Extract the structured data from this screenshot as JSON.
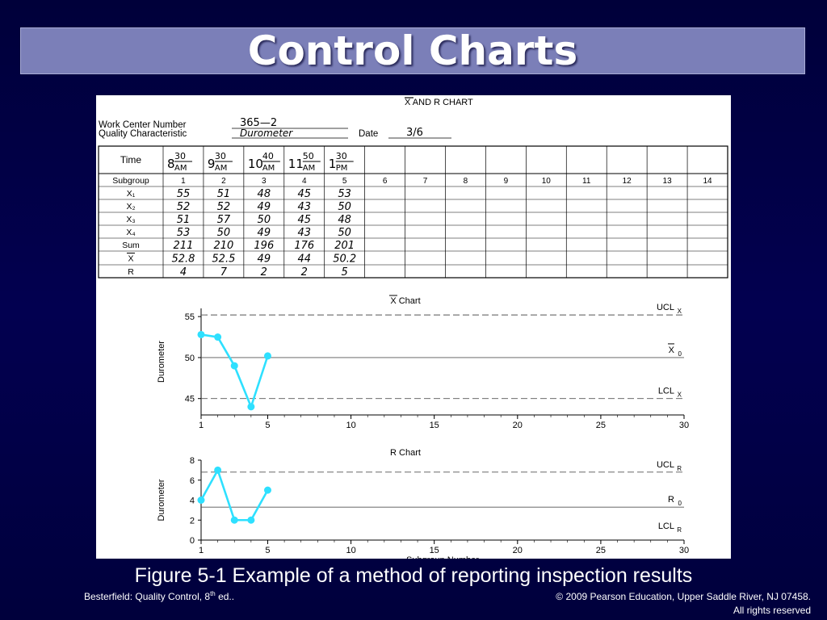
{
  "slide": {
    "title": "Control Charts",
    "caption": "Figure 5-1 Example of a method of reporting inspection results",
    "credit_left_pre": "Besterfield: Quality Control, 8",
    "credit_left_sup": "th",
    "credit_left_post": " ed..",
    "credit_right_line1": "© 2009 Pearson Education, Upper Saddle River, NJ 07458.",
    "credit_right_line2": "All rights reserved"
  },
  "form": {
    "heading": "X AND R CHART",
    "work_center_label": "Work Center Number",
    "work_center_value": "365—2",
    "quality_label": "Quality Characteristic",
    "quality_value": "Durometer",
    "date_label": "Date",
    "date_value": "3/6",
    "row_labels": {
      "time": "Time",
      "subgroup": "Subgroup",
      "x1": "X₁",
      "x2": "X₂",
      "x3": "X₃",
      "x4": "X₄",
      "sum": "Sum",
      "xbar": "X",
      "r": "R"
    },
    "times": [
      {
        "hour": "8",
        "min": "30",
        "ampm": "AM"
      },
      {
        "hour": "9",
        "min": "30",
        "ampm": "AM"
      },
      {
        "hour": "10",
        "min": "40",
        "ampm": "AM"
      },
      {
        "hour": "11",
        "min": "50",
        "ampm": "AM"
      },
      {
        "hour": "1",
        "min": "30",
        "ampm": "PM"
      }
    ],
    "subgroups": [
      "1",
      "2",
      "3",
      "4",
      "5",
      "6",
      "7",
      "8",
      "9",
      "10",
      "11",
      "12",
      "13",
      "14"
    ],
    "x1": [
      "55",
      "51",
      "48",
      "45",
      "53"
    ],
    "x2": [
      "52",
      "52",
      "49",
      "43",
      "50"
    ],
    "x3": [
      "51",
      "57",
      "50",
      "45",
      "48"
    ],
    "x4": [
      "53",
      "50",
      "49",
      "43",
      "50"
    ],
    "sum": [
      "211",
      "210",
      "196",
      "176",
      "201"
    ],
    "xbar": [
      "52.8",
      "52.5",
      "49",
      "44",
      "50.2"
    ],
    "r": [
      "4",
      "7",
      "2",
      "2",
      "5"
    ]
  },
  "chart_data": [
    {
      "type": "line",
      "title": "X Chart",
      "ylabel": "Durometer",
      "xlabel": "",
      "x": [
        1,
        2,
        3,
        4,
        5
      ],
      "values": [
        52.8,
        52.5,
        49,
        44,
        50.2
      ],
      "xlim": [
        1,
        30
      ],
      "ylim": [
        43,
        56
      ],
      "xticks": [
        1,
        5,
        10,
        15,
        20,
        25,
        30
      ],
      "yticks": [
        45,
        50,
        55
      ],
      "reference_lines": [
        {
          "label": "UCL",
          "sub": "X",
          "value": 55.2,
          "style": "dashed"
        },
        {
          "label": "X",
          "sub": "0",
          "value": 50.0,
          "style": "solid"
        },
        {
          "label": "LCL",
          "sub": "X",
          "value": 45.0,
          "style": "dashed"
        }
      ],
      "series_color": "#2ee0ff"
    },
    {
      "type": "line",
      "title": "R Chart",
      "ylabel": "Durometer",
      "xlabel": "Subgroup Number",
      "x": [
        1,
        2,
        3,
        4,
        5
      ],
      "values": [
        4,
        7,
        2,
        2,
        5
      ],
      "xlim": [
        1,
        30
      ],
      "ylim": [
        0,
        8
      ],
      "xticks": [
        1,
        5,
        10,
        15,
        20,
        25,
        30
      ],
      "yticks": [
        0,
        2,
        4,
        6,
        8
      ],
      "reference_lines": [
        {
          "label": "UCL",
          "sub": "R",
          "value": 6.8,
          "style": "dashed"
        },
        {
          "label": "R",
          "sub": "0",
          "value": 3.3,
          "style": "solid"
        },
        {
          "label": "LCL",
          "sub": "R",
          "value": 0,
          "style": "none"
        }
      ],
      "series_color": "#2ee0ff"
    }
  ]
}
